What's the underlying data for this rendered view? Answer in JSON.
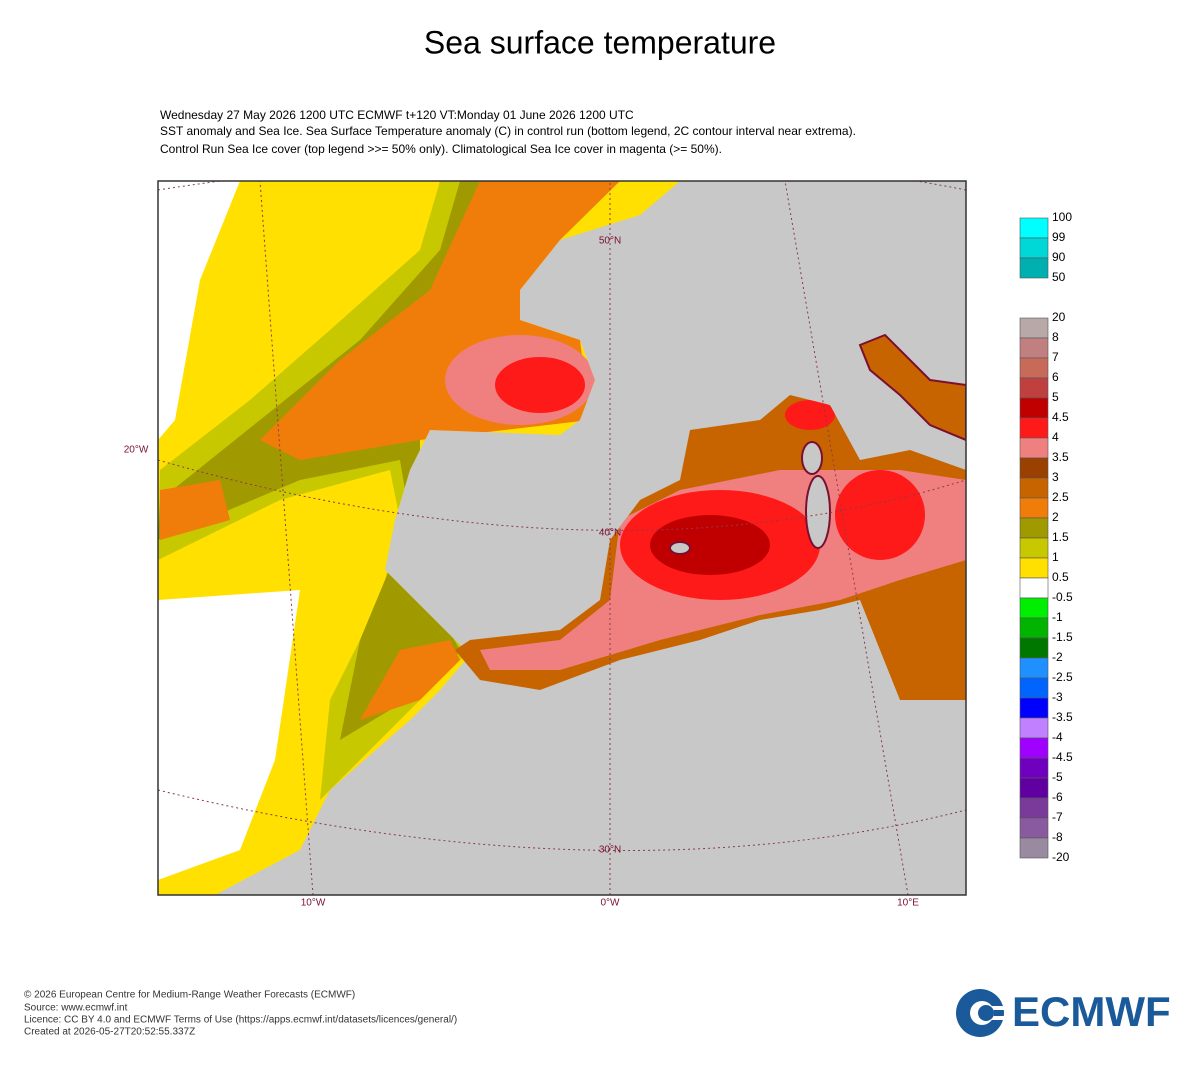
{
  "header": {
    "title": "Sea surface temperature",
    "subtitle": [
      "Wednesday 27 May 2026 1200 UTC  ECMWF  t+120  VT:Monday 01 June 2026 1200 UTC",
      "SST anomaly and Sea Ice. Sea Surface Temperature anomaly (C) in control run (bottom legend, 2C contour interval near extrema).",
      "Control Run Sea Ice cover (top legend >>= 50% only). Climatological Sea Ice cover in magenta (>= 50%)."
    ]
  },
  "map": {
    "lat_labels": [
      "50°N",
      "40°N",
      "30°N"
    ],
    "lon_labels": [
      "10°W",
      "0°W",
      "10°E"
    ],
    "side_label": "20°W"
  },
  "ice_legend": {
    "labels": [
      "100",
      "99",
      "90",
      "50"
    ],
    "colors": [
      "#00ffff",
      "#00d8d8",
      "#00b0b0"
    ]
  },
  "sst_legend": {
    "labels": [
      "20",
      "8",
      "7",
      "6",
      "5",
      "4.5",
      "4",
      "3.5",
      "3",
      "2.5",
      "2",
      "1.5",
      "1",
      "0.5",
      "-0.5",
      "-1",
      "-1.5",
      "-2",
      "-2.5",
      "-3",
      "-3.5",
      "-4",
      "-4.5",
      "-5",
      "-6",
      "-7",
      "-8",
      "-20"
    ],
    "colors": [
      "#b8a8a8",
      "#c08080",
      "#c86a5a",
      "#c04040",
      "#c00000",
      "#ff1a1a",
      "#f08080",
      "#9a4000",
      "#c86400",
      "#f07d0a",
      "#a09a00",
      "#c8c800",
      "#ffe000",
      "#ffffff",
      "#00ee00",
      "#00b400",
      "#007800",
      "#1e90ff",
      "#0064ff",
      "#0000ff",
      "#c080ff",
      "#a000ff",
      "#7000c0",
      "#6000a0",
      "#7a3a9a",
      "#8a5aa0",
      "#9a8aa0"
    ]
  },
  "footer": {
    "lines": [
      "© 2026 European Centre for Medium-Range Weather Forecasts (ECMWF)",
      "Source: www.ecmwf.int",
      "Licence: CC BY 4.0 and ECMWF Terms of Use (https://apps.ecmwf.int/datasets/licences/general/)",
      "Created at 2026-05-27T20:52:55.337Z"
    ]
  },
  "logo": "ECMWF"
}
